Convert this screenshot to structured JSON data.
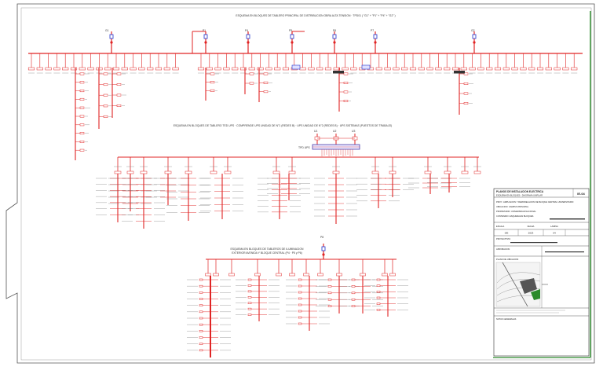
{
  "diagram": {
    "section1_title": "ESQUEMA EN BLOQUES DE TABLERO PRINCIPAL DE DISTRIBUCION OBRA ALTA TENSION · TPD01 ( \"G1\" + \"P1\" + \"P4\" + \"G2\" )",
    "section2_title": "ESQUEMA EN BLOQUES DE TABLERO TED UPS · COMPRENDE UPS UNIDAD DE N°1 (REDES B) · UPS UNIDAD DE N°2 (REDES B) · UPS SISTEMAS (PUESTOS DE TRABAJO)",
    "section3_title_line1": "ESQUEMA EN BLOQUES DE TABLEROS DE ILUMINACION",
    "section3_title_line2": "EXTERIOR AVENIDA Y BLOQUE CENTRAL (P4 · P5 y P6)",
    "gen_labels": [
      "G1",
      "G2",
      "P1",
      "P4",
      "P5",
      "P6",
      "P7",
      "P8"
    ],
    "ups_labels": [
      "U1",
      "U2",
      "U3"
    ],
    "ups_bus_label": "TPD UPS"
  },
  "title_block": {
    "header_line1": "PLANOS DE INSTALACION ELECTRICA",
    "header_line2": "ESQUEMA EN BLOQUES - DIAGRAMA UNIFILAR",
    "sheet_number": "IE-04",
    "project_label": "PROY.: AMPLIACION Y REMODELACION DE BLOQUE CENTRAL UNIVERSITARIO",
    "location_label": "UBICACION: CAMPUS PRINCIPAL",
    "owner_label": "PROPIETARIO: UNIVERSIDAD NACIONAL",
    "content_label": "CONTENIDO: ESQUEMA EN BLOQUES",
    "scale_label": "ESCALA",
    "scale_value": "S/E",
    "date_label": "FECHA",
    "date_value": "2023",
    "sheet_label": "LAMINA",
    "sheet_value": "04",
    "designer_label": "PROYECTISTA",
    "approval_label": "APROBACION",
    "location_plan_label": "PLANO DE UBICACION",
    "notes_label": "NOTAS GENERALES"
  },
  "colors": {
    "line": "#e02424",
    "border": "#333333",
    "green_edge": "#2a8a2a",
    "ups_bus": "#4a3aa8",
    "accent_blue": "#2233cc"
  }
}
